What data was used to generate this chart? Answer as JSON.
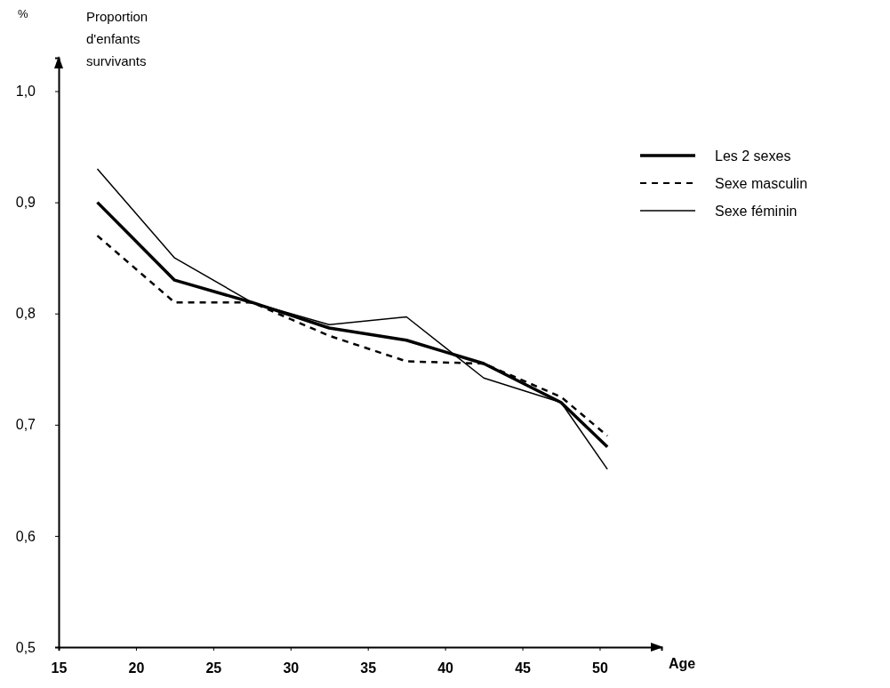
{
  "chart_data": {
    "type": "line",
    "ylabel": "Proportion d'enfants survivants",
    "xlabel": "Age",
    "annotations": [
      "%"
    ],
    "x": [
      17.5,
      22.5,
      27.5,
      32.5,
      37.5,
      42.5,
      47.5,
      50.5
    ],
    "xlim": [
      15,
      54
    ],
    "xticks": [
      15,
      20,
      25,
      30,
      35,
      40,
      45,
      50
    ],
    "ylim": [
      0.5,
      1.03
    ],
    "yticks": [
      {
        "value": 0.5,
        "label": "0,5"
      },
      {
        "value": 0.6,
        "label": "0,6"
      },
      {
        "value": 0.7,
        "label": "0,7"
      },
      {
        "value": 0.8,
        "label": "0,8"
      },
      {
        "value": 0.9,
        "label": "0,9"
      },
      {
        "value": 1.0,
        "label": "1,0"
      }
    ],
    "grid": false,
    "legend": "top right",
    "marker": "none",
    "series": [
      {
        "name": "Les 2 sexes",
        "color": "#000000",
        "line_style": "solid",
        "values": [
          0.9,
          0.83,
          0.81,
          0.787,
          0.776,
          0.755,
          0.72,
          0.68
        ]
      },
      {
        "name": "Sexe masculin",
        "color": "#000000",
        "line_style": "dashed",
        "values": [
          0.87,
          0.81,
          0.81,
          0.78,
          0.757,
          0.755,
          0.725,
          0.69
        ]
      },
      {
        "name": "Sexe féminin",
        "color": "#000000",
        "line_style": "solid",
        "values": [
          0.93,
          0.85,
          0.81,
          0.79,
          0.797,
          0.742,
          0.72,
          0.66
        ]
      }
    ]
  }
}
